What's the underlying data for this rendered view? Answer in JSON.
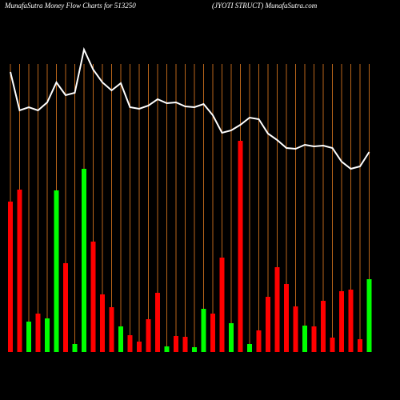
{
  "chart_data": {
    "type": "bar",
    "title": "MunafaSutra  Money Flow  Charts for 513250",
    "subtitle": "(JYOTI STRUCT) MunafaSutra.com",
    "values": [
      188,
      203,
      38,
      48,
      42,
      202,
      111,
      10,
      229,
      138,
      72,
      56,
      32,
      21,
      13,
      41,
      74,
      7,
      20,
      19,
      6,
      54,
      48,
      118,
      36,
      264,
      10,
      27,
      69,
      106,
      85,
      57,
      33,
      32,
      64,
      18,
      76,
      78,
      16,
      91
    ],
    "colors": [
      "#ff0000",
      "#ff0000",
      "#00ff00",
      "#ff0000",
      "#00ff00",
      "#00ff00",
      "#ff0000",
      "#00ff00",
      "#00ff00",
      "#ff0000",
      "#ff0000",
      "#ff0000",
      "#00ff00",
      "#ff0000",
      "#ff0000",
      "#ff0000",
      "#ff0000",
      "#00ff00",
      "#ff0000",
      "#ff0000",
      "#00ff00",
      "#00ff00",
      "#ff0000",
      "#ff0000",
      "#00ff00",
      "#ff0000",
      "#00ff00",
      "#ff0000",
      "#ff0000",
      "#ff0000",
      "#ff0000",
      "#ff0000",
      "#00ff00",
      "#ff0000",
      "#ff0000",
      "#ff0000",
      "#ff0000",
      "#ff0000",
      "#ff0000",
      "#00ff00"
    ],
    "line_values": [
      350,
      302,
      306,
      302,
      312,
      337,
      321,
      324,
      378,
      353,
      337,
      327,
      336,
      306,
      304,
      308,
      316,
      311,
      312,
      307,
      306,
      310,
      296,
      274,
      277,
      284,
      293,
      291,
      273,
      265,
      255,
      254,
      259,
      257,
      258,
      255,
      238,
      229,
      232,
      250
    ],
    "line_color": "#ffffff",
    "ylim": [
      0,
      380
    ]
  }
}
